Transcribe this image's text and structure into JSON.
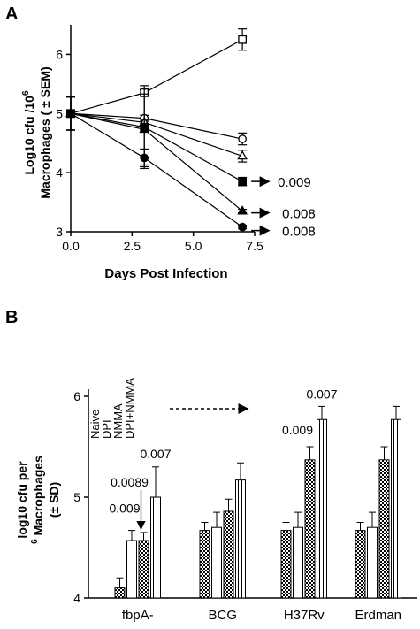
{
  "chart_data": [
    {
      "panel": "A",
      "type": "line",
      "xlabel": "Days Post Infection",
      "ylabel_line1": "Log10 cfu /10",
      "ylabel_line1_sup": "6",
      "ylabel_line2": "Macrophages ( ± SEM)",
      "xlim": [
        0,
        7.5
      ],
      "ylim": [
        3,
        6.5
      ],
      "x_ticks": [
        "0.0",
        "2.5",
        "5.0",
        "7.5"
      ],
      "y_ticks": [
        "3",
        "4",
        "5",
        "6"
      ],
      "x": [
        0,
        3,
        7
      ],
      "series": [
        {
          "marker": "square-open",
          "values": [
            5.0,
            5.35,
            6.25
          ],
          "sem": [
            0.28,
            0.05,
            0.18
          ]
        },
        {
          "marker": "circle-open",
          "values": [
            5.0,
            4.92,
            4.57
          ],
          "sem": [
            0.28,
            0.05,
            0.1
          ]
        },
        {
          "marker": "triangle-open",
          "values": [
            5.0,
            4.85,
            4.28
          ],
          "sem": [
            0.28,
            0.05,
            0.1
          ]
        },
        {
          "marker": "square-filled",
          "values": [
            5.0,
            4.77,
            3.85
          ],
          "sem": [
            0.28,
            0.7,
            0.07
          ],
          "annotation": "0.009"
        },
        {
          "marker": "triangle-filled",
          "values": [
            5.0,
            4.73,
            3.35
          ],
          "sem": [
            0.28,
            0.6,
            0.03
          ],
          "annotation": "0.008"
        },
        {
          "marker": "circle-filled",
          "values": [
            5.0,
            4.25,
            3.08
          ],
          "sem": [
            0.28,
            0.15,
            0.03
          ],
          "annotation": "0.008"
        }
      ]
    },
    {
      "panel": "B",
      "type": "bar",
      "ylabel_line1": "log10 cfu per",
      "ylabel_line2_sup": "6",
      "ylabel_line2": " Macrophages",
      "ylabel_line3": "(± SD)",
      "ylim": [
        4,
        6
      ],
      "y_ticks": [
        "4",
        "5",
        "6"
      ],
      "legend": [
        "Naive",
        "DPI",
        "NMMA",
        "DPI+NMMA"
      ],
      "categories": [
        "fbpA-",
        "BCG",
        "H37Rv",
        "Erdman"
      ],
      "series": [
        {
          "name": "Naive",
          "pattern": "checker",
          "values": [
            4.1,
            4.67,
            4.67,
            4.67
          ],
          "sd": [
            0.1,
            0.08,
            0.08,
            0.08
          ]
        },
        {
          "name": "DPI",
          "pattern": "white",
          "values": [
            4.57,
            4.7,
            4.7,
            4.7
          ],
          "sd": [
            0.1,
            0.15,
            0.15,
            0.15
          ]
        },
        {
          "name": "NMMA",
          "pattern": "checker",
          "values": [
            4.57,
            4.86,
            5.37,
            5.37
          ],
          "sd": [
            0.08,
            0.12,
            0.13,
            0.13
          ]
        },
        {
          "name": "DPI+NMMA",
          "pattern": "vlines",
          "values": [
            5.0,
            5.17,
            5.77,
            5.77
          ],
          "sd": [
            0.3,
            0.17,
            0.13,
            0.13
          ]
        }
      ],
      "annotations": [
        {
          "category": "fbpA-",
          "series": "DPI",
          "text": "0.009"
        },
        {
          "category": "fbpA-",
          "series": "NMMA",
          "text": "0.0089"
        },
        {
          "category": "fbpA-",
          "series": "DPI+NMMA",
          "text": "0.007"
        },
        {
          "category": "H37Rv",
          "series": "NMMA",
          "text": "0.009"
        },
        {
          "category": "H37Rv",
          "series": "DPI+NMMA",
          "text": "0.007"
        }
      ]
    }
  ],
  "panel_labels": [
    "A",
    "B"
  ]
}
